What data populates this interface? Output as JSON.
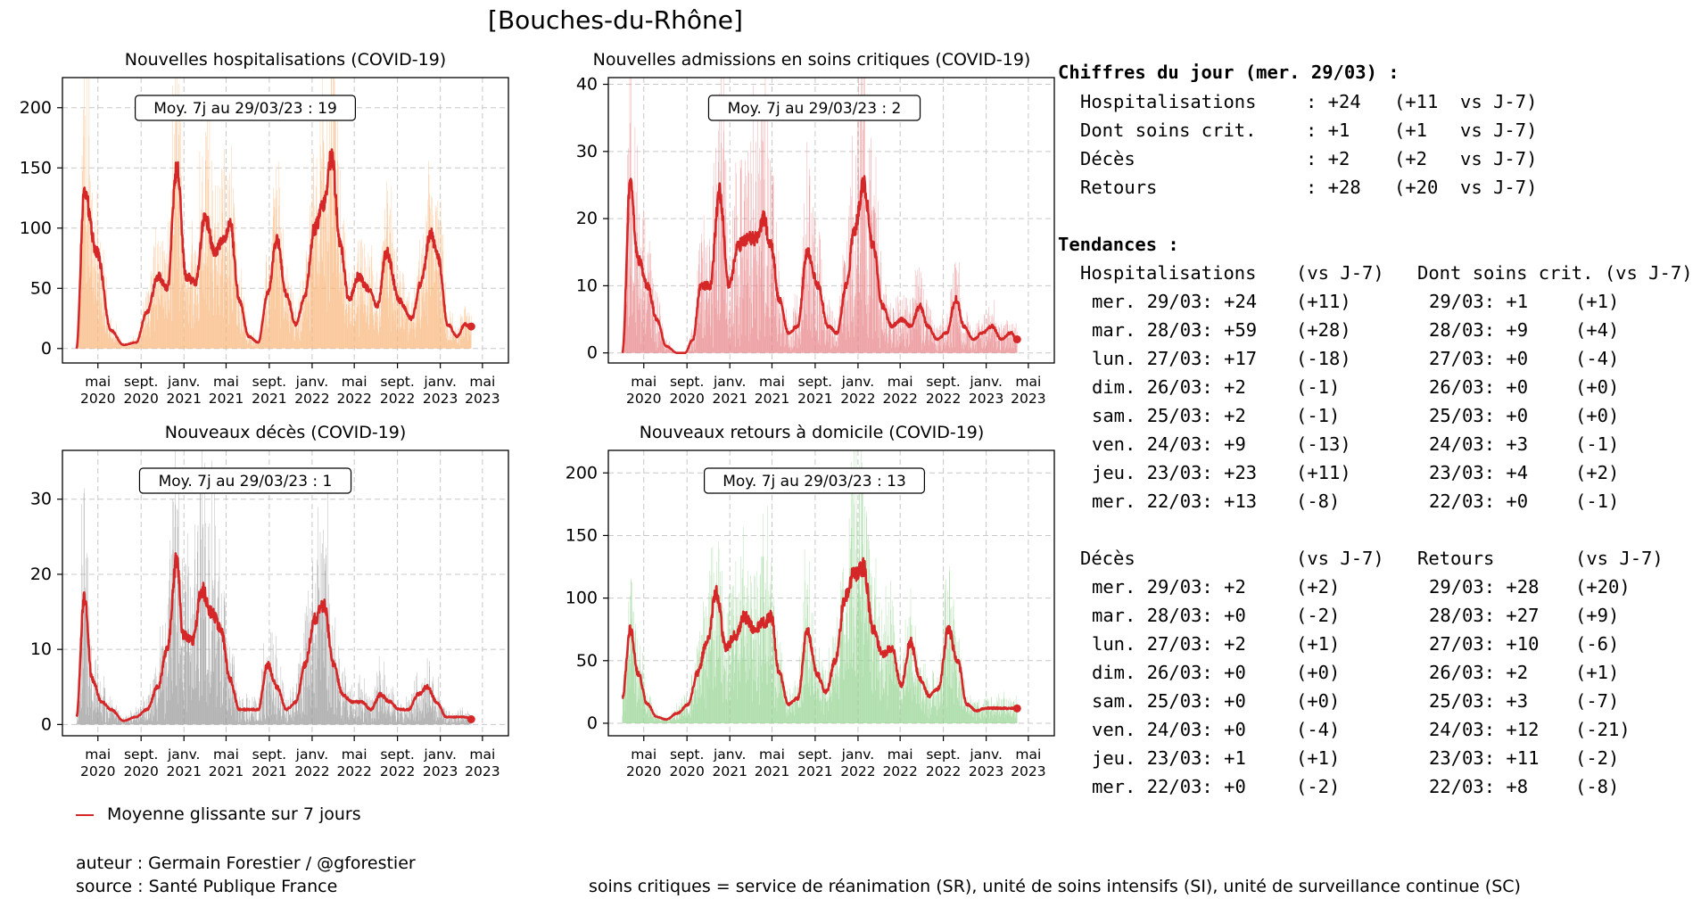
{
  "title": "[Bouches-du-Rhône]",
  "charts": [
    {
      "id": "hosp",
      "title": "Nouvelles hospitalisations (COVID-19)",
      "annotation": "Moy. 7j au 29/03/23 : 19",
      "bar_color": "#f9b77e",
      "ylim": [
        -12,
        225
      ],
      "yticks": [
        0,
        50,
        100,
        150,
        200
      ],
      "peaks": [
        [
          50,
          0
        ],
        [
          55,
          130
        ],
        [
          63,
          80
        ],
        [
          72,
          15
        ],
        [
          80,
          3
        ],
        [
          88,
          5
        ],
        [
          95,
          30
        ],
        [
          102,
          60
        ],
        [
          108,
          50
        ],
        [
          114,
          150
        ],
        [
          120,
          60
        ],
        [
          126,
          55
        ],
        [
          132,
          110
        ],
        [
          138,
          80
        ],
        [
          144,
          90
        ],
        [
          148,
          105
        ],
        [
          154,
          40
        ],
        [
          160,
          10
        ],
        [
          166,
          5
        ],
        [
          172,
          45
        ],
        [
          178,
          90
        ],
        [
          184,
          45
        ],
        [
          190,
          20
        ],
        [
          196,
          45
        ],
        [
          202,
          100
        ],
        [
          208,
          120
        ],
        [
          213,
          160
        ],
        [
          218,
          90
        ],
        [
          224,
          40
        ],
        [
          230,
          60
        ],
        [
          236,
          50
        ],
        [
          242,
          35
        ],
        [
          248,
          80
        ],
        [
          256,
          40
        ],
        [
          264,
          25
        ],
        [
          270,
          55
        ],
        [
          276,
          95
        ],
        [
          281,
          75
        ],
        [
          287,
          20
        ],
        [
          293,
          10
        ],
        [
          298,
          20
        ],
        [
          302,
          18
        ]
      ]
    },
    {
      "id": "crit",
      "title": "Nouvelles admissions en soins critiques (COVID-19)",
      "annotation": "Moy. 7j au 29/03/23 : 2",
      "bar_color": "#e8868a",
      "ylim": [
        -1.5,
        41
      ],
      "yticks": [
        0,
        10,
        20,
        30,
        40
      ],
      "peaks": [
        [
          50,
          0
        ],
        [
          55,
          25
        ],
        [
          60,
          14
        ],
        [
          66,
          10
        ],
        [
          72,
          5
        ],
        [
          78,
          1
        ],
        [
          85,
          0
        ],
        [
          90,
          0
        ],
        [
          95,
          2
        ],
        [
          100,
          10
        ],
        [
          106,
          10
        ],
        [
          112,
          24
        ],
        [
          118,
          10
        ],
        [
          124,
          16
        ],
        [
          130,
          17
        ],
        [
          136,
          17
        ],
        [
          140,
          20
        ],
        [
          145,
          16
        ],
        [
          150,
          8
        ],
        [
          156,
          3
        ],
        [
          162,
          4
        ],
        [
          168,
          15
        ],
        [
          175,
          10
        ],
        [
          181,
          4
        ],
        [
          187,
          3
        ],
        [
          193,
          10
        ],
        [
          198,
          18
        ],
        [
          204,
          25
        ],
        [
          210,
          16
        ],
        [
          216,
          7
        ],
        [
          222,
          4
        ],
        [
          228,
          5
        ],
        [
          234,
          4
        ],
        [
          240,
          7
        ],
        [
          245,
          4
        ],
        [
          251,
          2
        ],
        [
          257,
          3
        ],
        [
          263,
          8
        ],
        [
          268,
          4
        ],
        [
          274,
          2
        ],
        [
          280,
          3
        ],
        [
          286,
          4
        ],
        [
          292,
          2
        ],
        [
          298,
          3
        ],
        [
          302,
          2
        ]
      ]
    },
    {
      "id": "deces",
      "title": "Nouveaux décès (COVID-19)",
      "annotation": "Moy. 7j au 29/03/23 : 1",
      "bar_color": "#9b9b9b",
      "ylim": [
        -1.5,
        36.5
      ],
      "yticks": [
        0,
        10,
        20,
        30
      ],
      "peaks": [
        [
          50,
          1
        ],
        [
          55,
          17
        ],
        [
          60,
          6
        ],
        [
          66,
          3
        ],
        [
          72,
          2
        ],
        [
          80,
          0.5
        ],
        [
          88,
          1
        ],
        [
          95,
          2
        ],
        [
          102,
          5
        ],
        [
          108,
          10
        ],
        [
          114,
          22
        ],
        [
          118,
          12
        ],
        [
          124,
          11
        ],
        [
          130,
          18
        ],
        [
          136,
          15
        ],
        [
          142,
          13
        ],
        [
          148,
          6
        ],
        [
          154,
          2
        ],
        [
          160,
          2
        ],
        [
          166,
          2
        ],
        [
          172,
          8
        ],
        [
          178,
          5
        ],
        [
          184,
          2
        ],
        [
          190,
          3
        ],
        [
          196,
          8
        ],
        [
          202,
          14
        ],
        [
          208,
          16
        ],
        [
          214,
          8
        ],
        [
          220,
          4
        ],
        [
          226,
          3
        ],
        [
          232,
          3
        ],
        [
          238,
          2
        ],
        [
          244,
          4
        ],
        [
          250,
          3
        ],
        [
          256,
          2
        ],
        [
          262,
          2
        ],
        [
          268,
          4
        ],
        [
          274,
          5
        ],
        [
          280,
          3
        ],
        [
          286,
          1
        ],
        [
          292,
          1
        ],
        [
          298,
          1
        ],
        [
          302,
          0.7
        ]
      ]
    },
    {
      "id": "retours",
      "title": "Nouveaux retours à domicile (COVID-19)",
      "annotation": "Moy. 7j au 29/03/23 : 13",
      "bar_color": "#98d594",
      "ylim": [
        -10,
        218
      ],
      "yticks": [
        0,
        50,
        100,
        150,
        200
      ],
      "peaks": [
        [
          50,
          20
        ],
        [
          55,
          75
        ],
        [
          60,
          40
        ],
        [
          66,
          15
        ],
        [
          72,
          5
        ],
        [
          78,
          3
        ],
        [
          85,
          8
        ],
        [
          92,
          15
        ],
        [
          98,
          40
        ],
        [
          104,
          65
        ],
        [
          110,
          105
        ],
        [
          116,
          60
        ],
        [
          122,
          70
        ],
        [
          128,
          85
        ],
        [
          134,
          75
        ],
        [
          140,
          80
        ],
        [
          145,
          85
        ],
        [
          150,
          40
        ],
        [
          156,
          15
        ],
        [
          162,
          20
        ],
        [
          168,
          75
        ],
        [
          174,
          40
        ],
        [
          180,
          25
        ],
        [
          186,
          50
        ],
        [
          192,
          100
        ],
        [
          198,
          120
        ],
        [
          204,
          125
        ],
        [
          210,
          75
        ],
        [
          216,
          55
        ],
        [
          222,
          60
        ],
        [
          228,
          30
        ],
        [
          234,
          65
        ],
        [
          240,
          35
        ],
        [
          246,
          22
        ],
        [
          252,
          28
        ],
        [
          258,
          75
        ],
        [
          264,
          50
        ],
        [
          270,
          15
        ],
        [
          276,
          10
        ],
        [
          282,
          12
        ],
        [
          290,
          12
        ],
        [
          302,
          12
        ]
      ]
    }
  ],
  "chart_data": [
    {
      "type": "bar",
      "id": "hosp",
      "title": "Nouvelles hospitalisations (COVID-19)",
      "ylim": [
        -12,
        225
      ],
      "annotation": "Moy. 7j au 29/03/23 : 19",
      "x_ticks": [
        [
          "mai",
          "2020"
        ],
        [
          "sept.",
          "2020"
        ],
        [
          "janv.",
          "2021"
        ],
        [
          "mai",
          "2021"
        ],
        [
          "sept.",
          "2021"
        ],
        [
          "janv.",
          "2022"
        ],
        [
          "mai",
          "2022"
        ],
        [
          "sept.",
          "2022"
        ],
        [
          "janv.",
          "2023"
        ],
        [
          "mai",
          "2023"
        ]
      ],
      "series": [
        {
          "name": "Moyenne glissante sur 7 jours",
          "color": "#d62728"
        }
      ]
    },
    {
      "type": "bar",
      "id": "crit",
      "title": "Nouvelles admissions en soins critiques (COVID-19)",
      "ylim": [
        -1.5,
        41
      ],
      "annotation": "Moy. 7j au 29/03/23 : 2",
      "series": [
        {
          "name": "Moyenne glissante sur 7 jours",
          "color": "#d62728"
        }
      ]
    },
    {
      "type": "bar",
      "id": "deces",
      "title": "Nouveaux décès (COVID-19)",
      "ylim": [
        -1.5,
        36.5
      ],
      "annotation": "Moy. 7j au 29/03/23 : 1",
      "series": [
        {
          "name": "Moyenne glissante sur 7 jours",
          "color": "#d62728"
        }
      ]
    },
    {
      "type": "bar",
      "id": "retours",
      "title": "Nouveaux retours à domicile (COVID-19)",
      "ylim": [
        -10,
        218
      ],
      "annotation": "Moy. 7j au 29/03/23 : 13",
      "series": [
        {
          "name": "Moyenne glissante sur 7 jours",
          "color": "#d62728"
        }
      ]
    }
  ],
  "x_ticks": [
    {
      "date": "2020-05-01",
      "month": "mai",
      "year": "2020"
    },
    {
      "date": "2020-09-01",
      "month": "sept.",
      "year": "2020"
    },
    {
      "date": "2021-01-01",
      "month": "janv.",
      "year": "2021"
    },
    {
      "date": "2021-05-01",
      "month": "mai",
      "year": "2021"
    },
    {
      "date": "2021-09-01",
      "month": "sept.",
      "year": "2021"
    },
    {
      "date": "2022-01-01",
      "month": "janv.",
      "year": "2022"
    },
    {
      "date": "2022-05-01",
      "month": "mai",
      "year": "2022"
    },
    {
      "date": "2022-09-01",
      "month": "sept.",
      "year": "2022"
    },
    {
      "date": "2023-01-01",
      "month": "janv.",
      "year": "2023"
    },
    {
      "date": "2023-05-01",
      "month": "mai",
      "year": "2023"
    }
  ],
  "legend": {
    "label": "Moyenne glissante sur 7 jours",
    "color": "#d62728"
  },
  "footer": {
    "author": "auteur : Germain Forestier / @gforestier",
    "source": "source : Santé Publique France",
    "note": "soins critiques = service de réanimation (SR), unité de soins intensifs (SI), unité de surveillance continue (SC)"
  },
  "day_figures": {
    "title": "Chiffres du jour (mer. 29/03) :",
    "rows": [
      {
        "label": "Hospitalisations",
        "value": ": +24",
        "delta": "(+11  vs J-7)"
      },
      {
        "label": "Dont soins crit.",
        "value": ": +1",
        "delta": "(+1   vs J-7)"
      },
      {
        "label": "Décès",
        "value": ": +2",
        "delta": "(+2   vs J-7)"
      },
      {
        "label": "Retours",
        "value": ": +28",
        "delta": "(+20  vs J-7)"
      }
    ]
  },
  "trends": {
    "title": "Tendances :",
    "block1": {
      "left_header": "Hospitalisations",
      "left_vs": "(vs J-7)",
      "right_header": "Dont soins crit. (vs J-7)",
      "right_vs": "",
      "rows": [
        {
          "day": "mer. 29/03: +24",
          "d1": "(+11)",
          "r": "29/03: +1",
          "d2": "(+1)"
        },
        {
          "day": "mar. 28/03: +59",
          "d1": "(+28)",
          "r": "28/03: +9",
          "d2": "(+4)"
        },
        {
          "day": "lun. 27/03: +17",
          "d1": "(-18)",
          "r": "27/03: +0",
          "d2": "(-4)"
        },
        {
          "day": "dim. 26/03: +2",
          "d1": "(-1)",
          "r": "26/03: +0",
          "d2": "(+0)"
        },
        {
          "day": "sam. 25/03: +2",
          "d1": "(-1)",
          "r": "25/03: +0",
          "d2": "(+0)"
        },
        {
          "day": "ven. 24/03: +9",
          "d1": "(-13)",
          "r": "24/03: +3",
          "d2": "(-1)"
        },
        {
          "day": "jeu. 23/03: +23",
          "d1": "(+11)",
          "r": "23/03: +4",
          "d2": "(+2)"
        },
        {
          "day": "mer. 22/03: +13",
          "d1": "(-8)",
          "r": "22/03: +0",
          "d2": "(-1)"
        }
      ]
    },
    "block2": {
      "left_header": "Décès",
      "left_vs": "(vs J-7)",
      "right_header": "Retours",
      "right_vs": "(vs J-7)",
      "rows": [
        {
          "day": "mer. 29/03: +2",
          "d1": "(+2)",
          "r": "29/03: +28",
          "d2": "(+20)"
        },
        {
          "day": "mar. 28/03: +0",
          "d1": "(-2)",
          "r": "28/03: +27",
          "d2": "(+9)"
        },
        {
          "day": "lun. 27/03: +2",
          "d1": "(+1)",
          "r": "27/03: +10",
          "d2": "(-6)"
        },
        {
          "day": "dim. 26/03: +0",
          "d1": "(+0)",
          "r": "26/03: +2",
          "d2": "(+1)"
        },
        {
          "day": "sam. 25/03: +0",
          "d1": "(+0)",
          "r": "25/03: +3",
          "d2": "(-7)"
        },
        {
          "day": "ven. 24/03: +0",
          "d1": "(-4)",
          "r": "24/03: +12",
          "d2": "(-21)"
        },
        {
          "day": "jeu. 23/03: +1",
          "d1": "(+1)",
          "r": "23/03: +11",
          "d2": "(-2)"
        },
        {
          "day": "mer. 22/03: +0",
          "d1": "(-2)",
          "r": "22/03: +8",
          "d2": "(-8)"
        }
      ]
    }
  }
}
